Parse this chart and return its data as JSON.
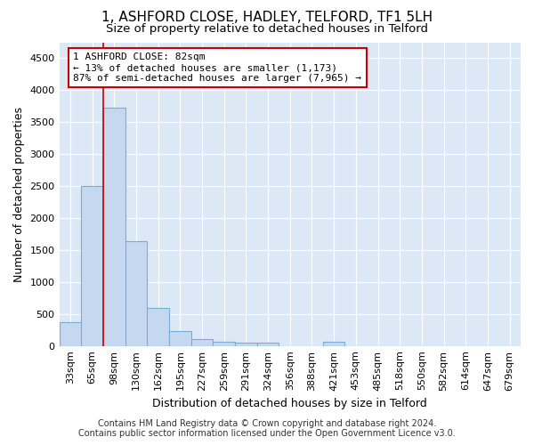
{
  "title": "1, ASHFORD CLOSE, HADLEY, TELFORD, TF1 5LH",
  "subtitle": "Size of property relative to detached houses in Telford",
  "xlabel": "Distribution of detached houses by size in Telford",
  "ylabel": "Number of detached properties",
  "categories": [
    "33sqm",
    "65sqm",
    "98sqm",
    "130sqm",
    "162sqm",
    "195sqm",
    "227sqm",
    "259sqm",
    "291sqm",
    "324sqm",
    "356sqm",
    "388sqm",
    "421sqm",
    "453sqm",
    "485sqm",
    "518sqm",
    "550sqm",
    "582sqm",
    "614sqm",
    "647sqm",
    "679sqm"
  ],
  "values": [
    370,
    2500,
    3730,
    1640,
    590,
    230,
    110,
    70,
    55,
    55,
    0,
    0,
    70,
    0,
    0,
    0,
    0,
    0,
    0,
    0,
    0
  ],
  "bar_color": "#c5d8f0",
  "bar_edge_color": "#7aadd4",
  "plot_bg_color": "#dce8f5",
  "fig_bg_color": "#ffffff",
  "grid_color": "#ffffff",
  "annotation_text": "1 ASHFORD CLOSE: 82sqm\n← 13% of detached houses are smaller (1,173)\n87% of semi-detached houses are larger (7,965) →",
  "annotation_box_color": "#ffffff",
  "annotation_box_edge_color": "#cc0000",
  "red_line_x": 1.5,
  "ylim": [
    0,
    4750
  ],
  "yticks": [
    0,
    500,
    1000,
    1500,
    2000,
    2500,
    3000,
    3500,
    4000,
    4500
  ],
  "footer": "Contains HM Land Registry data © Crown copyright and database right 2024.\nContains public sector information licensed under the Open Government Licence v3.0.",
  "title_fontsize": 11,
  "subtitle_fontsize": 9.5,
  "axis_label_fontsize": 9,
  "tick_fontsize": 8,
  "annotation_fontsize": 8,
  "footer_fontsize": 7
}
